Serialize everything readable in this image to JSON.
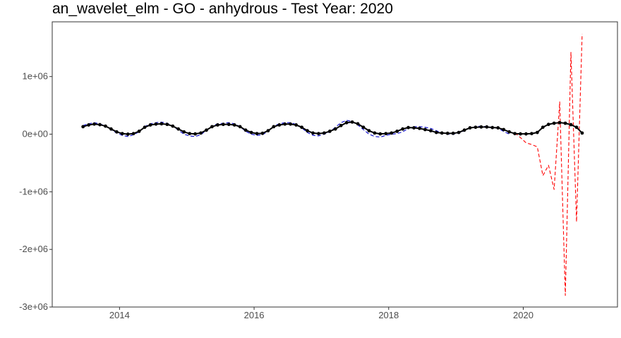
{
  "chart_data": {
    "type": "line",
    "title": "an_wavelet_elm - GO - anhydrous - Test Year: 2020",
    "xlabel": "",
    "ylabel": "",
    "xlim": [
      2013.0,
      2021.4
    ],
    "ylim": [
      -3000000,
      1950000
    ],
    "grid": false,
    "legend": "none",
    "x_ticks": [
      {
        "value": 2014,
        "label": "2014"
      },
      {
        "value": 2016,
        "label": "2016"
      },
      {
        "value": 2018,
        "label": "2018"
      },
      {
        "value": 2020,
        "label": "2020"
      }
    ],
    "y_ticks": [
      {
        "value": 1000000,
        "label": "1e+06"
      },
      {
        "value": 0,
        "label": "0e+00"
      },
      {
        "value": -1000000,
        "label": "-1e+06"
      },
      {
        "value": -2000000,
        "label": "-2e+06"
      },
      {
        "value": -3000000,
        "label": "-3e+06"
      }
    ],
    "colors": {
      "actual": "#000000",
      "fitted": "#0000cc",
      "forecast": "#ff0000"
    },
    "series": [
      {
        "style": "solid-with-points",
        "color": "#000000",
        "x_start": 2013.458,
        "x_step": 0.0833333,
        "values": [
          130000,
          160000,
          175000,
          165000,
          140000,
          90000,
          40000,
          10000,
          0,
          10000,
          50000,
          120000,
          160000,
          175000,
          180000,
          170000,
          140000,
          90000,
          40000,
          10000,
          5000,
          20000,
          70000,
          130000,
          160000,
          170000,
          170000,
          160000,
          130000,
          70000,
          30000,
          10000,
          15000,
          60000,
          130000,
          160000,
          175000,
          175000,
          160000,
          120000,
          60000,
          20000,
          10000,
          20000,
          50000,
          90000,
          150000,
          200000,
          210000,
          180000,
          120000,
          60000,
          20000,
          5000,
          10000,
          20000,
          50000,
          90000,
          115000,
          110000,
          100000,
          80000,
          60000,
          30000,
          20000,
          15000,
          15000,
          30000,
          70000,
          110000,
          120000,
          125000,
          125000,
          115000,
          110000,
          80000,
          40000,
          10000,
          5000,
          5000,
          10000,
          30000,
          120000,
          170000,
          190000,
          200000,
          190000,
          165000,
          120000,
          20000
        ]
      },
      {
        "style": "dashed",
        "color": "#0000cc",
        "x_start": 2013.458,
        "x_step": 0.0833333,
        "values": [
          150000,
          180000,
          200000,
          180000,
          140000,
          80000,
          20000,
          -20000,
          -40000,
          -10000,
          40000,
          130000,
          180000,
          200000,
          210000,
          190000,
          140000,
          70000,
          0,
          -30000,
          -40000,
          -10000,
          70000,
          140000,
          180000,
          190000,
          200000,
          180000,
          130000,
          50000,
          0,
          -20000,
          -10000,
          50000,
          140000,
          180000,
          200000,
          200000,
          170000,
          110000,
          30000,
          -20000,
          -30000,
          0,
          40000,
          120000,
          200000,
          240000,
          220000,
          160000,
          80000,
          0,
          -40000,
          -50000,
          -20000,
          0,
          10000,
          40000,
          100000,
          130000,
          130000,
          120000,
          100000,
          60000,
          20000,
          0,
          0,
          20000,
          60000,
          110000,
          130000,
          140000,
          130000,
          120000,
          100000,
          50000,
          0
        ]
      },
      {
        "style": "dashed",
        "color": "#ff0000",
        "x_start": 2019.875,
        "x_step": 0.0833333,
        "values": [
          20000,
          -60000,
          -150000,
          -180000,
          -220000,
          -720000,
          -540000,
          -960000,
          560000,
          -2800000,
          1420000,
          -1520000,
          1740000
        ]
      }
    ]
  }
}
